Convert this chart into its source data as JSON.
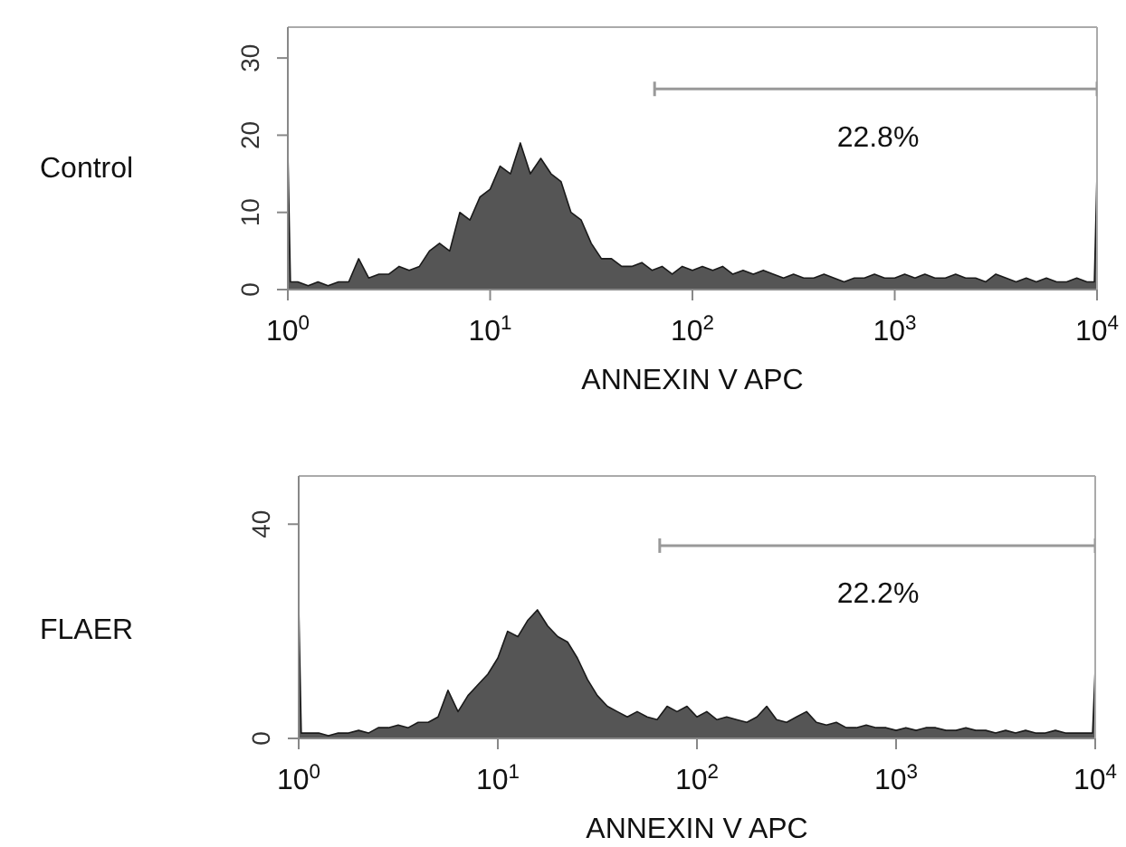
{
  "chart_data": [
    {
      "type": "area",
      "title": "Control",
      "xlabel": "ANNEXIN V APC",
      "log": "x",
      "grid": false,
      "legend": false,
      "xlim": [
        1,
        10000
      ],
      "xticks": [
        {
          "value": 1,
          "label": "10$^{0}$"
        },
        {
          "value": 10,
          "label": "10$^{1}$"
        },
        {
          "value": 100,
          "label": "10$^{2}$"
        },
        {
          "value": 1000,
          "label": "10$^{3}$"
        },
        {
          "value": 10000,
          "label": "10$^{4}$"
        }
      ],
      "ylim": [
        0,
        34
      ],
      "yticks": [
        0,
        10,
        20,
        30
      ],
      "annotations": [
        "22.8%"
      ],
      "series": [
        {
          "color": "#555555",
          "x": [
            1,
            1.03,
            1.12,
            1.26,
            1.41,
            1.58,
            1.78,
            2,
            2.24,
            2.51,
            2.82,
            3.16,
            3.55,
            3.98,
            4.47,
            5.01,
            5.62,
            6.31,
            7.08,
            7.94,
            8.91,
            10,
            11.2,
            12.6,
            14.1,
            15.8,
            17.8,
            20,
            22.4,
            25.1,
            28.2,
            31.6,
            35.5,
            39.8,
            44.7,
            50.1,
            56.2,
            63.1,
            70.8,
            79.4,
            89.1,
            100,
            112,
            126,
            141,
            158,
            178,
            200,
            224,
            251,
            282,
            316,
            355,
            398,
            447,
            501,
            562,
            631,
            708,
            794,
            891,
            1000,
            1120,
            1260,
            1410,
            1580,
            1780,
            2000,
            2240,
            2510,
            2820,
            3160,
            3550,
            3980,
            4470,
            5010,
            5620,
            6310,
            7080,
            7940,
            8910,
            9700,
            10000
          ],
          "values": [
            18,
            1,
            1,
            0.5,
            1,
            0.5,
            1,
            1,
            4,
            1.5,
            2,
            2,
            3,
            2.5,
            3,
            5,
            6,
            5,
            10,
            9,
            12,
            13,
            16,
            15,
            19,
            15,
            17,
            15,
            14,
            10,
            9,
            6,
            4,
            4,
            3,
            3,
            3.5,
            2.5,
            3,
            2,
            3,
            2.5,
            3,
            2.5,
            3,
            2,
            2.5,
            2,
            2.5,
            2,
            1.5,
            2,
            1.5,
            1.5,
            2,
            1.5,
            1,
            1.5,
            1.5,
            2,
            1.5,
            1.5,
            2,
            1.5,
            2,
            1.5,
            1.5,
            2,
            1.5,
            1.5,
            1,
            2,
            1.5,
            1,
            1.5,
            1,
            1.5,
            1,
            1,
            1.5,
            1,
            1,
            15
          ]
        },
        {
          "type": "line",
          "color": "#999999",
          "x": [
            65,
            10000
          ],
          "values": [
            26,
            26
          ]
        }
      ]
    },
    {
      "type": "area",
      "title": "FLAER",
      "xlabel": "ANNEXIN V APC",
      "log": "x",
      "grid": false,
      "legend": false,
      "xlim": [
        1,
        10000
      ],
      "xticks": [
        {
          "value": 1,
          "label": "10$^{0}$"
        },
        {
          "value": 10,
          "label": "10$^{1}$"
        },
        {
          "value": 100,
          "label": "10$^{2}$"
        },
        {
          "value": 1000,
          "label": "10$^{3}$"
        },
        {
          "value": 10000,
          "label": "10$^{4}$"
        }
      ],
      "ylim": [
        0,
        49
      ],
      "yticks": [
        0,
        40
      ],
      "annotations": [
        "22.2%"
      ],
      "series": [
        {
          "color": "#555555",
          "x": [
            1,
            1.03,
            1.12,
            1.26,
            1.41,
            1.58,
            1.78,
            2,
            2.24,
            2.51,
            2.82,
            3.16,
            3.55,
            3.98,
            4.47,
            5.01,
            5.62,
            6.31,
            7.08,
            7.94,
            8.91,
            10,
            11.2,
            12.6,
            14.1,
            15.8,
            17.8,
            20,
            22.4,
            25.1,
            28.2,
            31.6,
            35.5,
            39.8,
            44.7,
            50.1,
            56.2,
            63.1,
            70.8,
            79.4,
            89.1,
            100,
            112,
            126,
            141,
            158,
            178,
            200,
            224,
            251,
            282,
            316,
            355,
            398,
            447,
            501,
            562,
            631,
            708,
            794,
            891,
            1000,
            1120,
            1260,
            1410,
            1580,
            1780,
            2000,
            2240,
            2510,
            2820,
            3160,
            3550,
            3980,
            4470,
            5010,
            5620,
            6310,
            7080,
            7940,
            8910,
            9700,
            10000
          ],
          "values": [
            25,
            1,
            1,
            1,
            0.5,
            1,
            1,
            1.5,
            1,
            2,
            2,
            2.5,
            2,
            3,
            3,
            4,
            9,
            5,
            8,
            10,
            12,
            15,
            20,
            19,
            22,
            24,
            21,
            19,
            18,
            15,
            11,
            8,
            6,
            5,
            4,
            5,
            4,
            3.5,
            6,
            5,
            6,
            4,
            5,
            3.5,
            4,
            3.5,
            3,
            4,
            6,
            3.5,
            3,
            4,
            5,
            3,
            2.5,
            3,
            2,
            2,
            2.5,
            2,
            2,
            1.5,
            2,
            1.5,
            2,
            2,
            1.5,
            1.5,
            2,
            1.5,
            1.5,
            1,
            1.5,
            1,
            1.5,
            1,
            1,
            1.5,
            1,
            1,
            1,
            1,
            13
          ]
        },
        {
          "type": "line",
          "color": "#999999",
          "x": [
            65,
            10000
          ],
          "values": [
            36,
            36
          ]
        }
      ]
    }
  ]
}
